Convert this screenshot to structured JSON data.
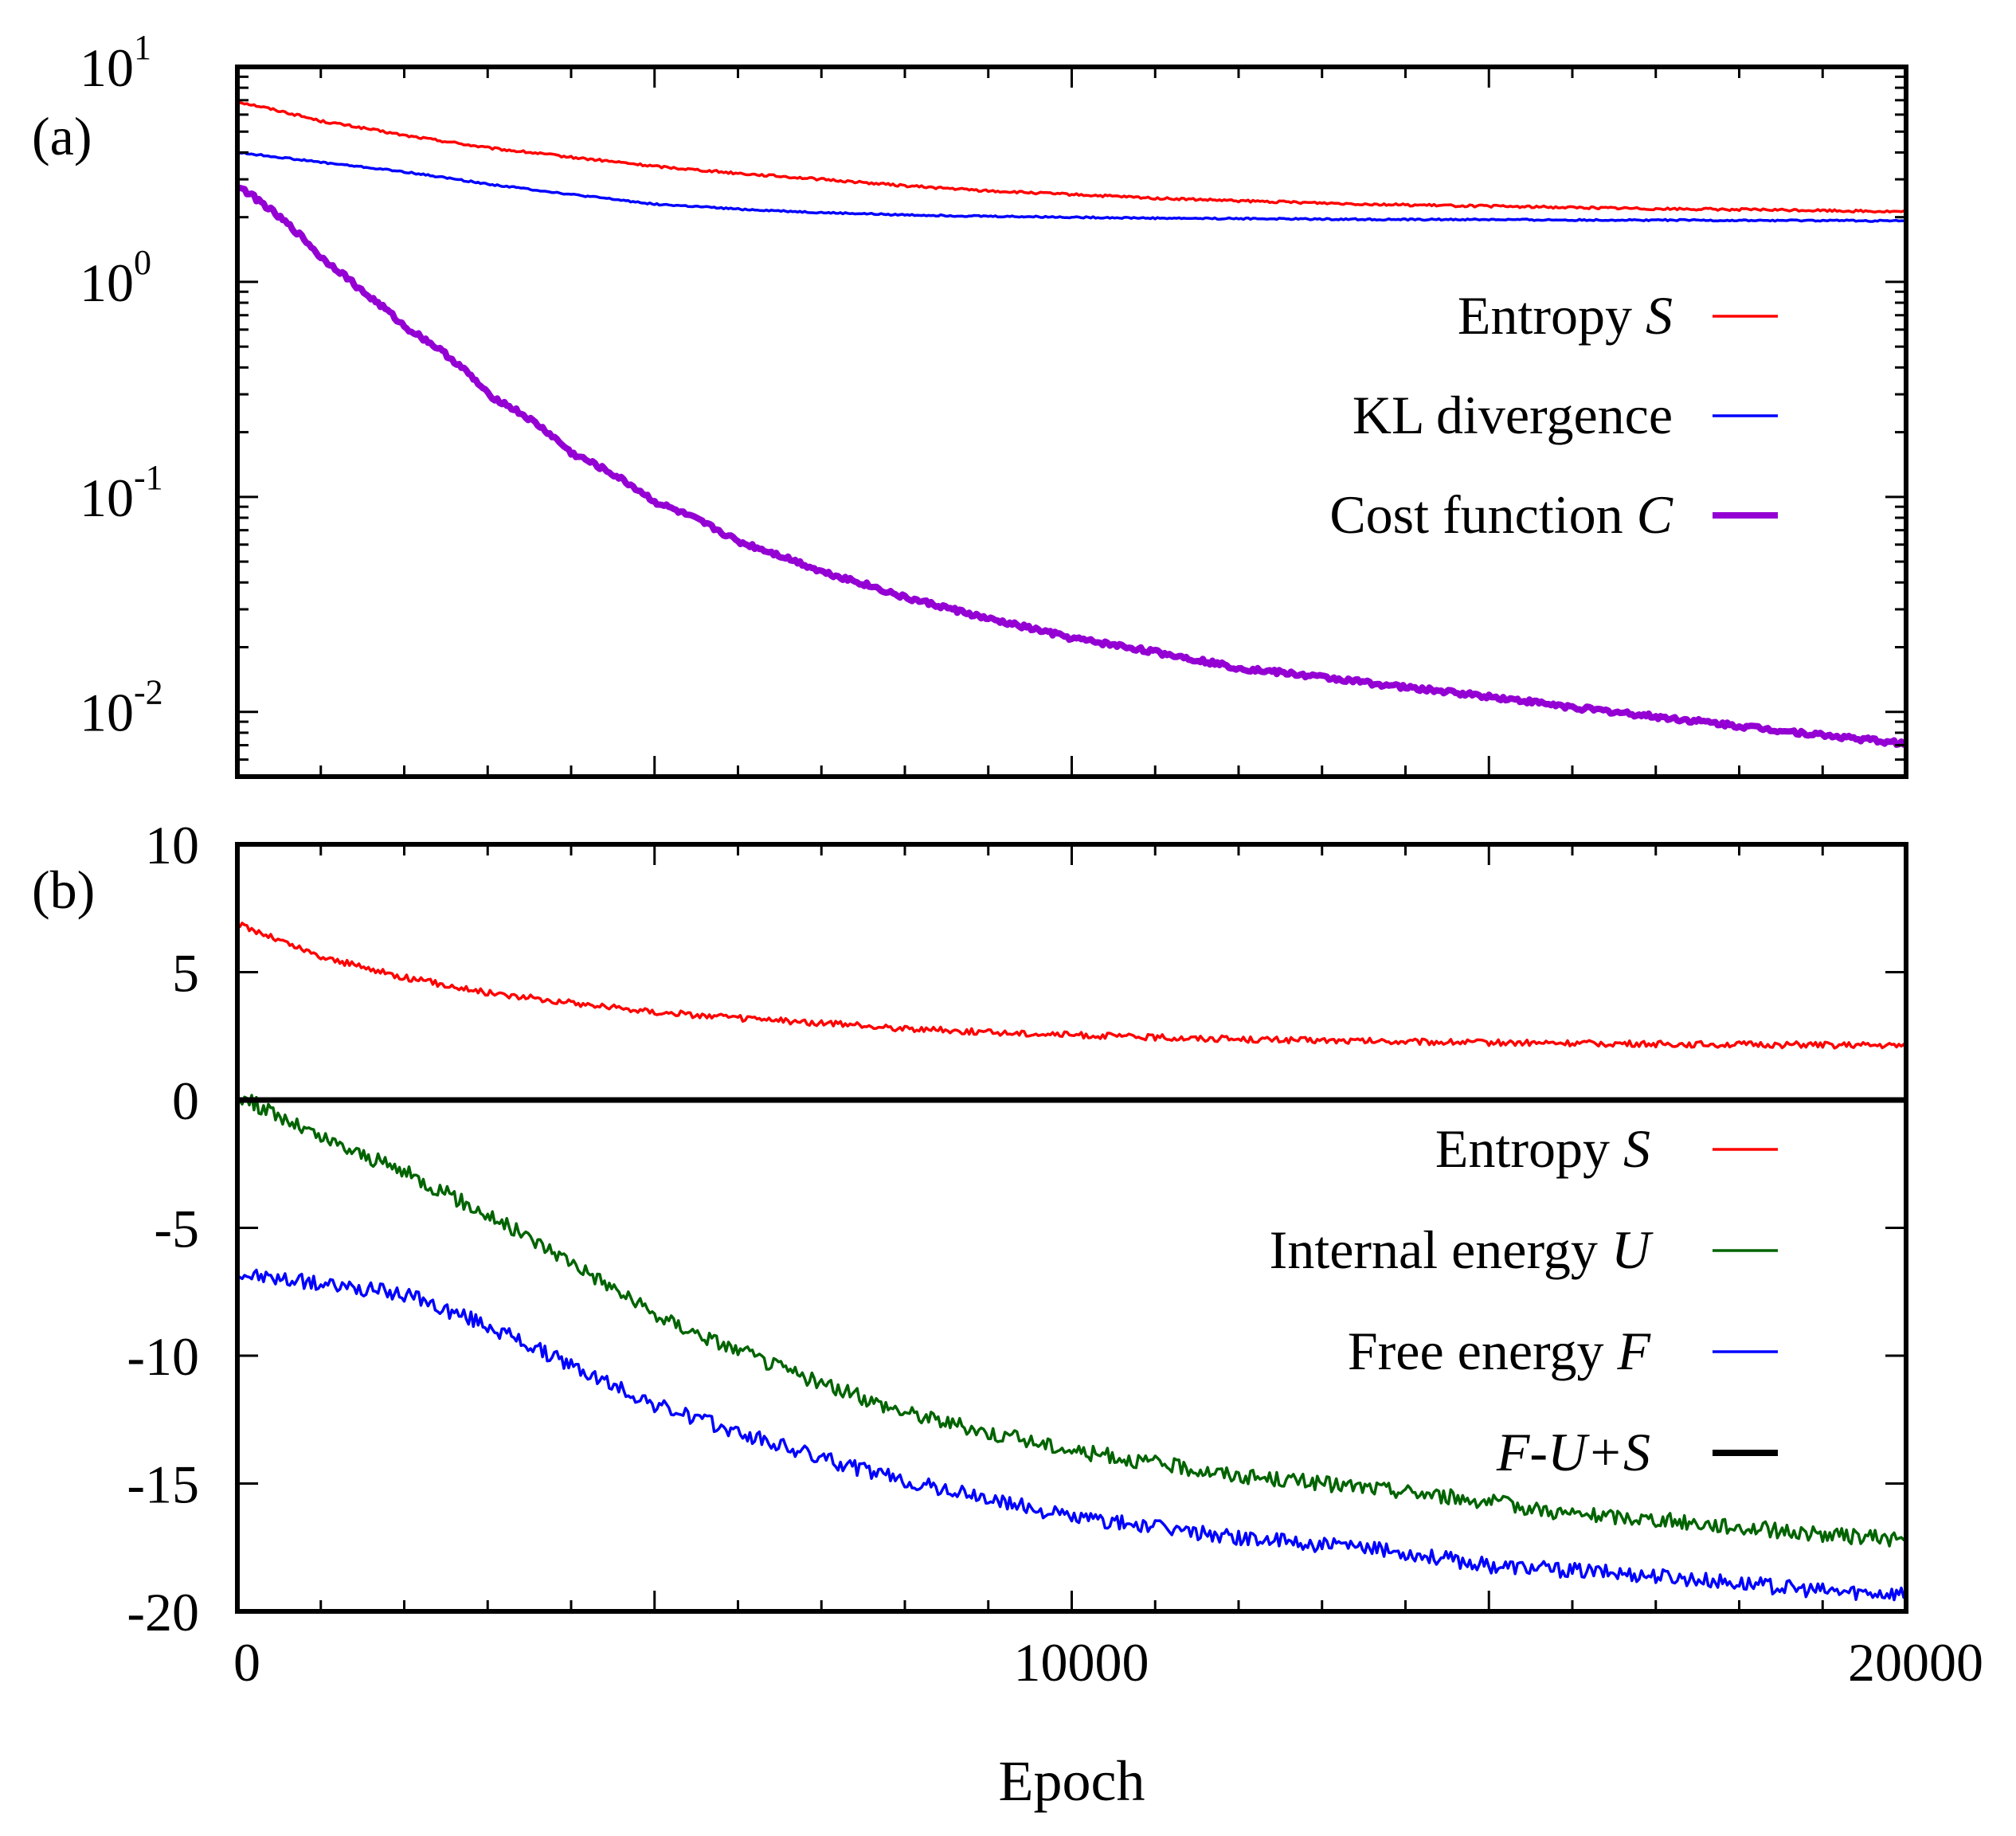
{
  "chart_data": [
    {
      "panel": "(a)",
      "type": "line",
      "yscale": "log",
      "xlim": [
        0,
        20000
      ],
      "ylim": [
        0.005,
        10
      ],
      "yticks": [
        {
          "base": "10",
          "exp": "1",
          "value": 10
        },
        {
          "base": "10",
          "exp": "0",
          "value": 1
        },
        {
          "base": "10",
          "exp": "-1",
          "value": 0.1
        },
        {
          "base": "10",
          "exp": "-2",
          "value": 0.01
        }
      ],
      "series": [
        {
          "name": "Entropy",
          "symbol": "S",
          "color": "#ff0000",
          "width": "thin",
          "x": [
            0,
            1000,
            2000,
            3000,
            4000,
            5000,
            6000,
            7000,
            8000,
            9000,
            10000,
            11000,
            12000,
            13000,
            14000,
            15000,
            16000,
            17000,
            18000,
            19000,
            20000
          ],
          "y": [
            6.9,
            5.6,
            4.8,
            4.2,
            3.8,
            3.45,
            3.2,
            3.0,
            2.8,
            2.65,
            2.55,
            2.45,
            2.38,
            2.33,
            2.28,
            2.25,
            2.22,
            2.19,
            2.17,
            2.15,
            2.12
          ],
          "noise": 0.012
        },
        {
          "name": "KL divergence",
          "symbol": "",
          "color": "#0000ff",
          "width": "thin",
          "x": [
            0,
            1000,
            2000,
            3000,
            4000,
            5000,
            6000,
            7000,
            8000,
            9000,
            10000,
            11000,
            12000,
            13000,
            14000,
            15000,
            16000,
            17000,
            18000,
            19000,
            20000
          ],
          "y": [
            4.0,
            3.6,
            3.25,
            2.85,
            2.55,
            2.3,
            2.18,
            2.1,
            2.05,
            2.02,
            2.0,
            1.98,
            1.97,
            1.96,
            1.95,
            1.95,
            1.94,
            1.94,
            1.93,
            1.93,
            1.92
          ],
          "noise": 0.008
        },
        {
          "name": "Cost function",
          "symbol": "C",
          "color": "#9400d3",
          "width": "thick",
          "x": [
            0,
            500,
            1000,
            1500,
            2000,
            3000,
            4000,
            5000,
            6000,
            7000,
            8000,
            9000,
            10000,
            11000,
            12000,
            13000,
            14000,
            15000,
            16000,
            17000,
            18000,
            19000,
            20000
          ],
          "y": [
            2.8,
            2.0,
            1.3,
            0.9,
            0.62,
            0.3,
            0.16,
            0.095,
            0.062,
            0.045,
            0.034,
            0.027,
            0.022,
            0.019,
            0.016,
            0.0145,
            0.013,
            0.0118,
            0.0105,
            0.0095,
            0.0086,
            0.0078,
            0.0071
          ],
          "noise": 0.025
        }
      ]
    },
    {
      "panel": "(b)",
      "type": "line",
      "yscale": "linear",
      "xlim": [
        0,
        20000
      ],
      "ylim": [
        -20,
        10
      ],
      "yticks": [
        "10",
        "5",
        "0",
        "-5",
        "-10",
        "-15",
        "-20"
      ],
      "xticks": [
        "0",
        "10000",
        "20000"
      ],
      "xlabel": "Epoch",
      "series": [
        {
          "name": "Entropy",
          "symbol": "S",
          "color": "#ff0000",
          "width": "thin",
          "x": [
            0,
            1000,
            2000,
            3000,
            4000,
            5000,
            6000,
            7000,
            8000,
            9000,
            10000,
            11000,
            12000,
            13000,
            14000,
            15000,
            16000,
            17000,
            18000,
            19000,
            20000
          ],
          "y": [
            6.9,
            5.6,
            4.8,
            4.2,
            3.8,
            3.45,
            3.2,
            3.0,
            2.8,
            2.65,
            2.55,
            2.45,
            2.38,
            2.33,
            2.28,
            2.25,
            2.22,
            2.19,
            2.17,
            2.15,
            2.12
          ],
          "noise": 0.12
        },
        {
          "name": "Internal energy",
          "symbol": "U",
          "color": "#006400",
          "width": "thin",
          "x": [
            0,
            1000,
            2000,
            3000,
            4000,
            5000,
            6000,
            7000,
            8000,
            9000,
            10000,
            11000,
            12000,
            13000,
            14000,
            15000,
            16000,
            17000,
            18000,
            19000,
            20000
          ],
          "y": [
            0.2,
            -1.5,
            -2.8,
            -4.5,
            -6.3,
            -8.4,
            -9.8,
            -11.1,
            -12.2,
            -13.0,
            -13.7,
            -14.2,
            -14.7,
            -15.0,
            -15.3,
            -15.7,
            -16.2,
            -16.4,
            -16.7,
            -17.0,
            -17.2
          ],
          "noise": 0.3
        },
        {
          "name": "Free energy",
          "symbol": "F",
          "color": "#0000ff",
          "width": "thin",
          "x": [
            0,
            1000,
            2000,
            3000,
            4000,
            5000,
            6000,
            7000,
            8000,
            9000,
            10000,
            11000,
            12000,
            13000,
            14000,
            15000,
            16000,
            17000,
            18000,
            19000,
            20000
          ],
          "y": [
            -6.8,
            -7.2,
            -7.6,
            -8.8,
            -10.4,
            -11.9,
            -13.0,
            -14.0,
            -14.9,
            -15.6,
            -16.3,
            -16.7,
            -17.1,
            -17.4,
            -17.7,
            -18.2,
            -18.4,
            -18.6,
            -18.9,
            -19.2,
            -19.3
          ],
          "noise": 0.3
        },
        {
          "name": "F-U+S",
          "symbol": "",
          "color": "#000000",
          "width": "thick",
          "x": [
            0,
            20000
          ],
          "y": [
            0,
            0
          ],
          "noise": 0
        }
      ]
    }
  ],
  "legend_a": [
    {
      "text": "Entropy ",
      "sym": "S",
      "color": "#ff0000",
      "thick": false
    },
    {
      "text": "KL divergence",
      "sym": "",
      "color": "#0000ff",
      "thick": false
    },
    {
      "text": "Cost function ",
      "sym": "C",
      "color": "#9400d3",
      "thick": true
    }
  ],
  "legend_b": [
    {
      "text": "Entropy ",
      "sym": "S",
      "color": "#ff0000",
      "thick": false
    },
    {
      "text": "Internal energy ",
      "sym": "U",
      "color": "#006400",
      "thick": false
    },
    {
      "text": "Free energy ",
      "sym": "F",
      "color": "#0000ff",
      "thick": false
    },
    {
      "text": "",
      "sym": "F-U+S",
      "color": "#000000",
      "thick": true
    }
  ]
}
